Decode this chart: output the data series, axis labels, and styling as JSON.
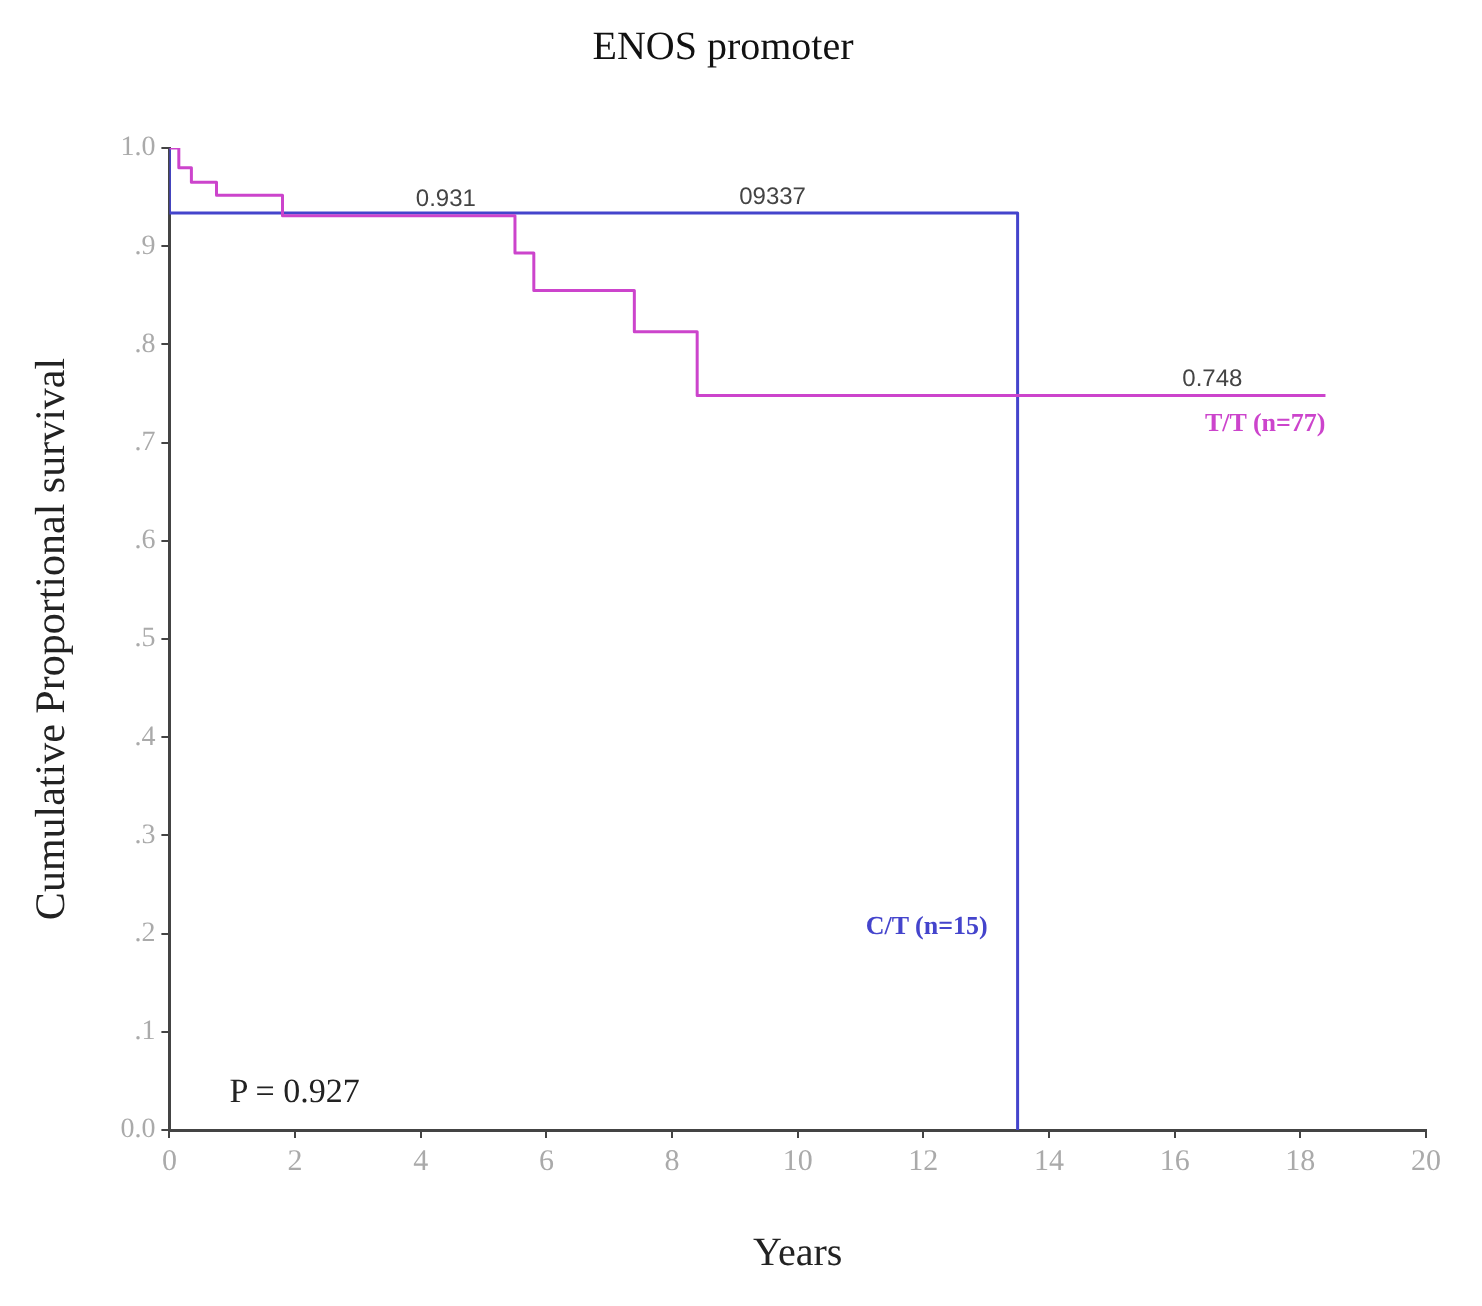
{
  "chart_data": {
    "type": "step",
    "title": "ENOS promoter",
    "xlabel": "Years",
    "ylabel": "Cumulative Proportional survival",
    "series": [
      {
        "name": "T/T (n=77)",
        "color": "#cc44cc",
        "x": [
          0,
          0.15,
          0.35,
          0.75,
          1.8,
          5.5,
          5.8,
          7.4,
          8.4,
          18.4
        ],
        "values": [
          1,
          0.98,
          0.965,
          0.952,
          0.931,
          0.893,
          0.855,
          0.813,
          0.748,
          0.748
        ]
      },
      {
        "name": "C/T (n=15)",
        "color": "#4444cc",
        "x": [
          0,
          0,
          13.5,
          13.5
        ],
        "values": [
          1,
          0.9337,
          0.9337,
          0
        ]
      }
    ],
    "xlim": [
      0,
      20
    ],
    "xticks": [
      0,
      2,
      4,
      6,
      8,
      10,
      12,
      14,
      16,
      18,
      20
    ],
    "ylim": [
      0,
      1
    ],
    "yticks": [
      {
        "value": 0,
        "label": "0.0"
      },
      {
        "value": 0.1,
        "label": ".1"
      },
      {
        "value": 0.2,
        "label": ".2"
      },
      {
        "value": 0.3,
        "label": ".3"
      },
      {
        "value": 0.4,
        "label": ".4"
      },
      {
        "value": 0.5,
        "label": ".5"
      },
      {
        "value": 0.6,
        "label": ".6"
      },
      {
        "value": 0.7,
        "label": ".7"
      },
      {
        "value": 0.8,
        "label": ".8"
      },
      {
        "value": 0.9,
        "label": ".9"
      },
      {
        "value": 1,
        "label": "1.0"
      }
    ],
    "annotations": [
      {
        "text": "09337",
        "x": 9.6,
        "y": 0.9337
      },
      {
        "text": "0.931",
        "x": 4.4,
        "y": 0.931
      },
      {
        "text": "0.748",
        "x": 16.6,
        "y": 0.748
      },
      "P = 0.927"
    ],
    "grid": false,
    "legend": false,
    "marker": "none",
    "line_style": "solid"
  }
}
